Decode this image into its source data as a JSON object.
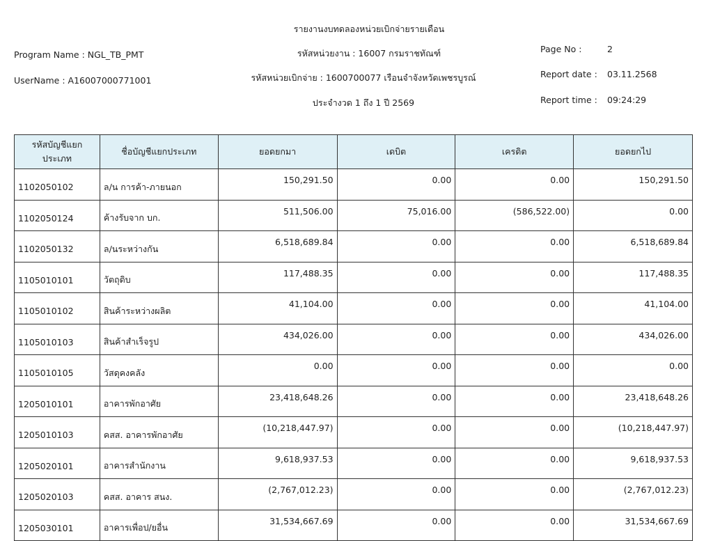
{
  "header": {
    "title": "รายงานงบทดลองหน่วยเบิกจ่ายรายเดือน",
    "agency": "รหัสหน่วยงาน : 16007 กรมราชทัณฑ์",
    "disbursing_unit": "รหัสหน่วยเบิกจ่าย : 1600700077 เรือนจำจังหวัดเพชรบูรณ์",
    "period": "ประจำงวด 1 ถึง 1 ปี 2569",
    "program_name": "Program Name : NGL_TB_PMT",
    "username": "UserName : A16007000771001",
    "page_no_label": "Page No :",
    "page_no": "2",
    "report_date_label": "Report date :",
    "report_date": "03.11.2568",
    "report_time_label": "Report time :",
    "report_time": "09:24:29"
  },
  "table": {
    "columns": [
      "รหัสบัญชีแยกประเภท",
      "ชื่อบัญชีแยกประเภท",
      "ยอดยกมา",
      "เดบิต",
      "เครดิต",
      "ยอดยกไป"
    ],
    "rows": [
      [
        "1102050102",
        "ล/น การค้า-ภายนอก",
        "150,291.50",
        "0.00",
        "0.00",
        "150,291.50"
      ],
      [
        "1102050124",
        "ค้างรับจาก บก.",
        "511,506.00",
        "75,016.00",
        "(586,522.00)",
        "0.00"
      ],
      [
        "1102050132",
        "ล/นระหว่างกัน",
        "6,518,689.84",
        "0.00",
        "0.00",
        "6,518,689.84"
      ],
      [
        "1105010101",
        "วัตถุดิบ",
        "117,488.35",
        "0.00",
        "0.00",
        "117,488.35"
      ],
      [
        "1105010102",
        "สินค้าระหว่างผลิต",
        "41,104.00",
        "0.00",
        "0.00",
        "41,104.00"
      ],
      [
        "1105010103",
        "สินค้าสำเร็จรูป",
        "434,026.00",
        "0.00",
        "0.00",
        "434,026.00"
      ],
      [
        "1105010105",
        "วัสดุคงคลัง",
        "0.00",
        "0.00",
        "0.00",
        "0.00"
      ],
      [
        "1205010101",
        "อาคารพักอาศัย",
        "23,418,648.26",
        "0.00",
        "0.00",
        "23,418,648.26"
      ],
      [
        "1205010103",
        "คสส. อาคารพักอาศัย",
        "(10,218,447.97)",
        "0.00",
        "0.00",
        "(10,218,447.97)"
      ],
      [
        "1205020101",
        "อาคารสำนักงาน",
        "9,618,937.53",
        "0.00",
        "0.00",
        "9,618,937.53"
      ],
      [
        "1205020103",
        "คสส. อาคาร สนง.",
        "(2,767,012.23)",
        "0.00",
        "0.00",
        "(2,767,012.23)"
      ],
      [
        "1205030101",
        "อาคารเพื่อป/ยอื่น",
        "31,534,667.69",
        "0.00",
        "0.00",
        "31,534,667.69"
      ]
    ]
  }
}
